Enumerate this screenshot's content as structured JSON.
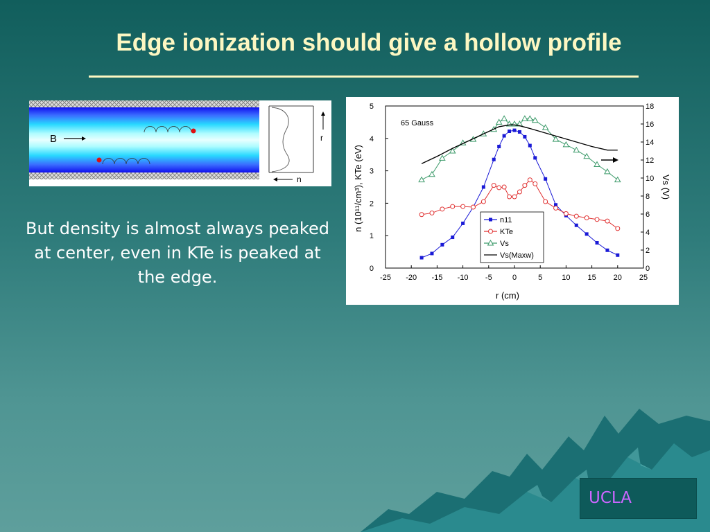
{
  "slide": {
    "title": "Edge ionization should give a hollow profile",
    "caption": "But density is almost always peaked at center, even in KTe is peaked at the edge.",
    "logo_text": "UCLA"
  },
  "diagram": {
    "field_label": "B",
    "axis_r_label": "r",
    "axis_n_label": "n"
  },
  "chart_data": {
    "type": "line",
    "annotation": "65 Gauss",
    "xlabel": "r (cm)",
    "ylabel_left": "n (10¹¹/cm³), KTe (eV)",
    "ylabel_right": "Vs (V)",
    "xlim": [
      -25,
      25
    ],
    "xticks": [
      -25,
      -20,
      -15,
      -10,
      -5,
      0,
      5,
      10,
      15,
      20,
      25
    ],
    "ylim_left": [
      0,
      5
    ],
    "yticks_left": [
      0,
      1,
      2,
      3,
      4,
      5
    ],
    "ylim_right": [
      0,
      18
    ],
    "yticks_right": [
      0,
      2,
      4,
      6,
      8,
      10,
      12,
      14,
      16,
      18
    ],
    "grid": false,
    "legend_position": "center-right, inside plot",
    "series": [
      {
        "name": "n11",
        "axis": "left",
        "color": "#1a1ad6",
        "marker": "square-filled",
        "x": [
          -18,
          -16,
          -14,
          -12,
          -10,
          -8,
          -6,
          -4,
          -3,
          -2,
          -1,
          0,
          1,
          2,
          3,
          4,
          6,
          8,
          10,
          12,
          14,
          16,
          18,
          20
        ],
        "y": [
          0.32,
          0.45,
          0.72,
          0.95,
          1.38,
          1.88,
          2.5,
          3.35,
          3.75,
          4.08,
          4.22,
          4.25,
          4.2,
          4.05,
          3.78,
          3.4,
          2.75,
          1.95,
          1.62,
          1.32,
          1.05,
          0.78,
          0.55,
          0.4
        ]
      },
      {
        "name": "KTe",
        "axis": "left",
        "color": "#e03030",
        "marker": "circle-open",
        "x": [
          -18,
          -16,
          -14,
          -12,
          -10,
          -8,
          -6,
          -4,
          -3,
          -2,
          -1,
          0,
          1,
          2,
          3,
          4,
          6,
          8,
          10,
          12,
          14,
          16,
          18,
          20
        ],
        "y": [
          1.65,
          1.7,
          1.82,
          1.9,
          1.9,
          1.88,
          2.05,
          2.55,
          2.48,
          2.5,
          2.2,
          2.2,
          2.35,
          2.55,
          2.72,
          2.6,
          2.05,
          1.85,
          1.68,
          1.6,
          1.55,
          1.5,
          1.45,
          1.22
        ]
      },
      {
        "name": "Vs",
        "axis": "right",
        "color": "#3c9a6a",
        "marker": "triangle-open",
        "x": [
          -18,
          -16,
          -14,
          -12,
          -10,
          -8,
          -6,
          -4,
          -3,
          -2,
          -1,
          0,
          1,
          2,
          3,
          4,
          6,
          8,
          10,
          12,
          14,
          16,
          18,
          20
        ],
        "y": [
          9.8,
          10.4,
          12.2,
          13.0,
          13.9,
          14.3,
          14.9,
          15.4,
          16.2,
          16.6,
          16.0,
          16.0,
          16.0,
          16.6,
          16.6,
          16.4,
          15.6,
          14.3,
          13.7,
          13.1,
          12.4,
          11.5,
          10.7,
          9.8
        ]
      },
      {
        "name": "Vs(Maxw)",
        "axis": "right",
        "color": "#000000",
        "marker": "none",
        "x": [
          -18,
          -15,
          -12,
          -9,
          -6,
          -3,
          -1,
          0,
          1,
          3,
          6,
          9,
          12,
          15,
          18,
          20
        ],
        "y": [
          11.6,
          12.4,
          13.3,
          14.1,
          14.9,
          15.7,
          15.9,
          15.9,
          15.8,
          15.5,
          15.0,
          14.5,
          14.0,
          13.5,
          13.1,
          13.1
        ]
      }
    ]
  }
}
